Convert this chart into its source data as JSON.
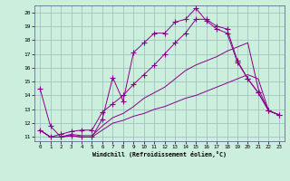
{
  "xlabel": "Windchill (Refroidissement éolien,°C)",
  "xlim": [
    -0.5,
    23.5
  ],
  "ylim": [
    10.7,
    20.5
  ],
  "yticks": [
    11,
    12,
    13,
    14,
    15,
    16,
    17,
    18,
    19,
    20
  ],
  "xticks": [
    0,
    1,
    2,
    3,
    4,
    5,
    6,
    7,
    8,
    9,
    10,
    11,
    12,
    13,
    14,
    15,
    16,
    17,
    18,
    19,
    20,
    21,
    22,
    23
  ],
  "bg_color": "#cceedd",
  "line_color": "#880088",
  "grid_color": "#99bbbb",
  "lines": [
    {
      "x": [
        0,
        1,
        2,
        3,
        4,
        5,
        6,
        7,
        8,
        9,
        10,
        11,
        12,
        13,
        14,
        15,
        16,
        17,
        18,
        19,
        20,
        21,
        22,
        23
      ],
      "y": [
        14.5,
        11.8,
        11.0,
        11.1,
        11.0,
        11.0,
        12.3,
        15.3,
        13.6,
        17.1,
        17.8,
        18.5,
        18.5,
        19.3,
        19.5,
        20.3,
        19.4,
        18.8,
        18.5,
        16.4,
        15.2,
        14.2,
        12.9,
        12.6
      ],
      "has_marker": true
    },
    {
      "x": [
        0,
        1,
        2,
        3,
        4,
        5,
        6,
        7,
        8,
        9,
        10,
        11,
        12,
        13,
        14,
        15,
        16,
        17,
        18,
        19,
        20,
        21,
        22,
        23
      ],
      "y": [
        11.5,
        11.0,
        11.0,
        11.1,
        11.0,
        11.0,
        11.5,
        12.0,
        12.2,
        12.5,
        12.7,
        13.0,
        13.2,
        13.5,
        13.8,
        14.0,
        14.3,
        14.6,
        14.9,
        15.2,
        15.5,
        15.2,
        12.9,
        12.6
      ],
      "has_marker": false
    },
    {
      "x": [
        0,
        1,
        2,
        3,
        4,
        5,
        6,
        7,
        8,
        9,
        10,
        11,
        12,
        13,
        14,
        15,
        16,
        17,
        18,
        19,
        20,
        21,
        22,
        23
      ],
      "y": [
        11.5,
        11.0,
        11.0,
        11.2,
        11.1,
        11.1,
        11.8,
        12.4,
        12.7,
        13.2,
        13.8,
        14.2,
        14.6,
        15.2,
        15.8,
        16.2,
        16.5,
        16.8,
        17.2,
        17.5,
        17.8,
        14.5,
        12.9,
        12.6
      ],
      "has_marker": false
    },
    {
      "x": [
        0,
        1,
        2,
        3,
        4,
        5,
        6,
        7,
        8,
        9,
        10,
        11,
        12,
        13,
        14,
        15,
        16,
        17,
        18,
        19,
        20,
        21,
        22,
        23
      ],
      "y": [
        11.5,
        11.0,
        11.2,
        11.4,
        11.5,
        11.5,
        12.8,
        13.4,
        14.0,
        14.8,
        15.5,
        16.2,
        17.0,
        17.8,
        18.5,
        19.5,
        19.5,
        19.0,
        18.8,
        16.5,
        15.2,
        14.2,
        12.9,
        12.6
      ],
      "has_marker": true
    }
  ]
}
